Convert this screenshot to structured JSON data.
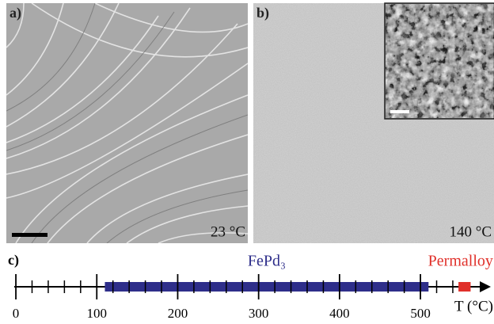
{
  "panels": [
    {
      "label": "a)",
      "annotation": "23 °C"
    },
    {
      "label": "b)",
      "annotation": "140 °C"
    }
  ],
  "chart_data": {
    "type": "range",
    "label": "c)",
    "x_label": "T (°C)",
    "xlim": [
      -2,
      587
    ],
    "xticks": [
      0,
      100,
      200,
      300,
      400,
      500
    ],
    "xminor_ticks": [
      20,
      40,
      60,
      80,
      120,
      140,
      160,
      180,
      220,
      240,
      260,
      280,
      320,
      340,
      360,
      380,
      420,
      440,
      460,
      480,
      520,
      540
    ],
    "series": [
      {
        "name": "FePd₃",
        "color": "#2e2e8a",
        "values": [
          110,
          510
        ]
      },
      {
        "name": "Permalloy",
        "color": "#e0302a",
        "values": [
          547,
          562
        ]
      }
    ]
  }
}
